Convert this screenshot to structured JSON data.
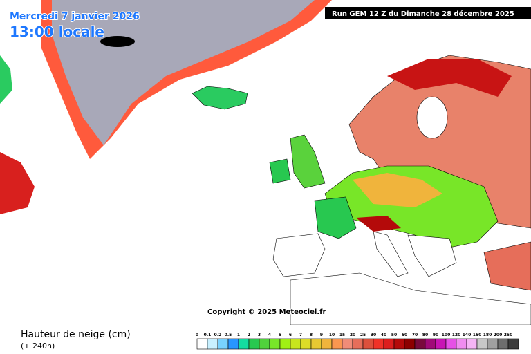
{
  "header": {
    "date": "Mercredi 7 janvier 2026",
    "time": "13:00 locale",
    "run": "Run GEM 12 Z du Dimanche 28 décembre 2025"
  },
  "copyright": "Copyright © 2025 Meteociel.fr",
  "legend": {
    "title": "Hauteur de neige (cm)",
    "lead": "(+ 240h)",
    "items": [
      {
        "label": "0",
        "color": "#ffffff"
      },
      {
        "label": "0.1",
        "color": "#c8f0ff"
      },
      {
        "label": "0.2",
        "color": "#78d2ff"
      },
      {
        "label": "0.5",
        "color": "#2896ff"
      },
      {
        "label": "1",
        "color": "#14dca0"
      },
      {
        "label": "2",
        "color": "#28c850"
      },
      {
        "label": "3",
        "color": "#50d23c"
      },
      {
        "label": "4",
        "color": "#78e628"
      },
      {
        "label": "5",
        "color": "#a0f014"
      },
      {
        "label": "6",
        "color": "#c8e61e"
      },
      {
        "label": "7",
        "color": "#dcdc28"
      },
      {
        "label": "8",
        "color": "#e6c832"
      },
      {
        "label": "9",
        "color": "#f0b43c"
      },
      {
        "label": "10",
        "color": "#fa9650"
      },
      {
        "label": "15",
        "color": "#f08c78"
      },
      {
        "label": "20",
        "color": "#e66e5a"
      },
      {
        "label": "25",
        "color": "#dc503c"
      },
      {
        "label": "30",
        "color": "#f03228"
      },
      {
        "label": "40",
        "color": "#dc1e1e"
      },
      {
        "label": "50",
        "color": "#b40a0a"
      },
      {
        "label": "60",
        "color": "#8c0000"
      },
      {
        "label": "70",
        "color": "#780a3c"
      },
      {
        "label": "80",
        "color": "#a00a78"
      },
      {
        "label": "90",
        "color": "#c814b4"
      },
      {
        "label": "100",
        "color": "#e650e6"
      },
      {
        "label": "120",
        "color": "#f08cf0"
      },
      {
        "label": "140",
        "color": "#f5b4f5"
      },
      {
        "label": "160",
        "color": "#c8c8c8"
      },
      {
        "label": "180",
        "color": "#a0a0a0"
      },
      {
        "label": "200",
        "color": "#6e6e6e"
      },
      {
        "label": "250",
        "color": "#3c3c3c"
      }
    ]
  }
}
